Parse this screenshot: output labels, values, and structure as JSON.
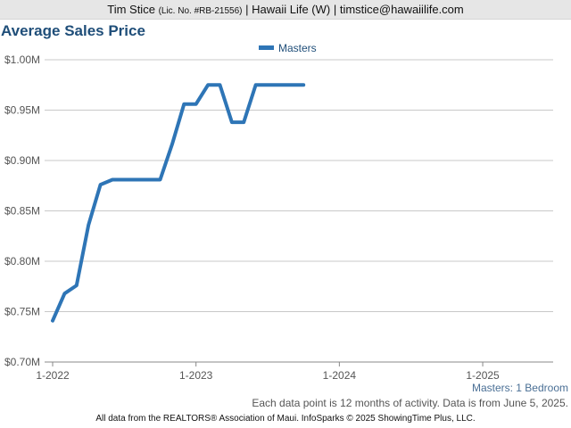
{
  "header": {
    "agent_name": "Tim Stice",
    "license": "(Lic. No. #RB-21556)",
    "rest": "| Hawaii Life (W) | timstice@hawaiilife.com"
  },
  "chart_title": "Average Sales Price",
  "subset_label": "Masters: 1 Bedroom",
  "note": "Each data point is 12 months of activity. Data is from June 5, 2025.",
  "footer": "All data from the REALTORS® Association of Maui. InfoSparks © 2025 ShowingTime Plus, LLC.",
  "chart_data": {
    "type": "line",
    "title": "Average Sales Price",
    "xlabel": "",
    "ylabel": "",
    "legend_position": "top-center",
    "grid": true,
    "line_color": "#2e75b6",
    "x_ticks": [
      "1-2022",
      "1-2023",
      "1-2024",
      "1-2025"
    ],
    "y_ticks": [
      "$0.70M",
      "$0.75M",
      "$0.80M",
      "$0.85M",
      "$0.90M",
      "$0.95M",
      "$1.00M"
    ],
    "ylim": [
      0.7,
      1.0
    ],
    "xlim": [
      "2022-01",
      "2025-06"
    ],
    "series": [
      {
        "name": "Masters",
        "x": [
          "2022-01",
          "2022-02",
          "2022-03",
          "2022-04",
          "2022-05",
          "2022-06",
          "2022-07",
          "2022-08",
          "2022-09",
          "2022-10",
          "2022-11",
          "2022-12",
          "2023-01",
          "2023-02",
          "2023-03",
          "2023-04",
          "2023-05",
          "2023-06",
          "2023-07",
          "2023-08",
          "2023-09",
          "2023-10"
        ],
        "values": [
          0.741,
          0.768,
          0.776,
          0.836,
          0.876,
          0.881,
          0.881,
          0.881,
          0.881,
          0.881,
          0.916,
          0.956,
          0.956,
          0.975,
          0.975,
          0.938,
          0.938,
          0.975,
          0.975,
          0.975,
          0.975,
          0.975
        ]
      }
    ]
  }
}
